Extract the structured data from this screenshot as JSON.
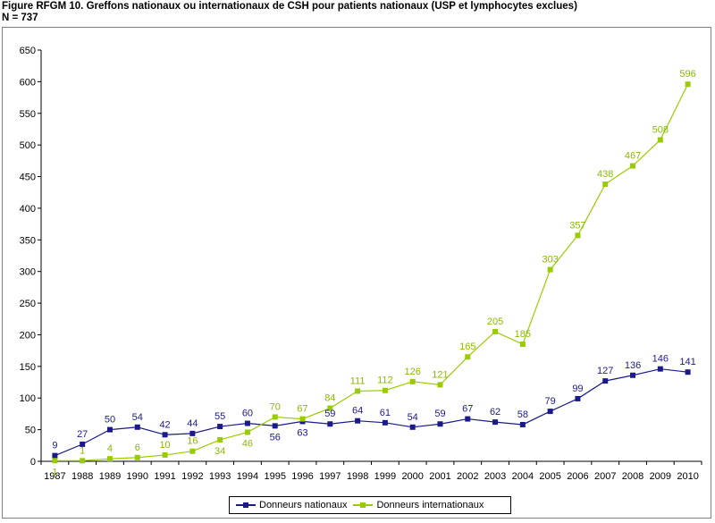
{
  "header": {
    "title": "Figure RFGM 10. Greffons nationaux ou internationaux de CSH pour patients nationaux (USP et lymphocytes exclues)",
    "subtitle": "N = 737"
  },
  "colors": {
    "national": "#1a1a8a",
    "international": "#99cc00",
    "national_label": "#1a1a8a",
    "international_label": "#88bb00",
    "axis": "#000000"
  },
  "chart_data": {
    "type": "line",
    "title": "",
    "xlabel": "",
    "ylabel": "",
    "ylim": [
      0,
      650
    ],
    "yticks": [
      0,
      50,
      100,
      150,
      200,
      250,
      300,
      350,
      400,
      450,
      500,
      550,
      600,
      650
    ],
    "grid": false,
    "legend_position": "bottom",
    "categories": [
      "1987",
      "1988",
      "1989",
      "1990",
      "1991",
      "1992",
      "1993",
      "1994",
      "1995",
      "1996",
      "1997",
      "1998",
      "1999",
      "2000",
      "2001",
      "2002",
      "2003",
      "2004",
      "2005",
      "2006",
      "2007",
      "2008",
      "2009",
      "2010"
    ],
    "series": [
      {
        "name": "Donneurs nationaux",
        "marker": "square",
        "values": [
          9,
          27,
          50,
          54,
          42,
          44,
          55,
          60,
          56,
          63,
          59,
          64,
          61,
          54,
          59,
          67,
          62,
          58,
          79,
          99,
          127,
          136,
          146,
          141
        ]
      },
      {
        "name": "Donneurs internationaux",
        "marker": "square",
        "values": [
          1,
          1,
          4,
          6,
          10,
          16,
          34,
          46,
          70,
          67,
          84,
          111,
          112,
          126,
          121,
          165,
          205,
          185,
          303,
          357,
          438,
          467,
          508,
          596
        ]
      }
    ]
  }
}
